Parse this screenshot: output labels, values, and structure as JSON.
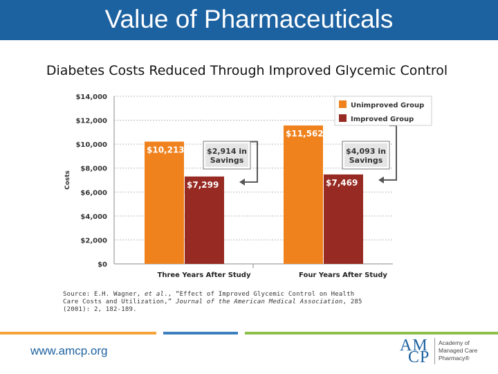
{
  "header": {
    "title": "Value of Pharmaceuticals"
  },
  "colors": {
    "header_bg": "#1d62a0",
    "unimproved": "#f0821e",
    "improved": "#972a22",
    "savings_box": "#e5e5e5",
    "grid": "#bbbbbb",
    "footer_orange": "#f5a23a",
    "footer_blue": "#3d7fbf",
    "footer_green": "#8cc04b"
  },
  "chart_data": {
    "type": "bar",
    "title": "Diabetes Costs Reduced Through Improved Glycemic Control",
    "ylabel": "Costs",
    "xlabel": "",
    "ylim": [
      0,
      14000
    ],
    "yticks": [
      "$0",
      "$2,000",
      "$4,000",
      "$6,000",
      "$8,000",
      "$10,000",
      "$12,000",
      "$14,000"
    ],
    "ytick_values": [
      0,
      2000,
      4000,
      6000,
      8000,
      10000,
      12000,
      14000
    ],
    "categories": [
      "Three Years After Study",
      "Four Years After Study"
    ],
    "series": [
      {
        "name": "Unimproved Group",
        "values": [
          10213,
          11562
        ],
        "labels": [
          "$10,213",
          "$11,562"
        ]
      },
      {
        "name": "Improved Group",
        "values": [
          7299,
          7469
        ],
        "labels": [
          "$7,299",
          "$7,469"
        ]
      }
    ],
    "annotations": [
      {
        "category": "Three Years After Study",
        "line1": "$2,914 in",
        "line2": "Savings"
      },
      {
        "category": "Four Years After Study",
        "line1": "$4,093 in",
        "line2": "Savings"
      }
    ],
    "legend_position": "top-right"
  },
  "source": {
    "prefix": "Source: E.H. Wagner, ",
    "etal": "et al",
    "middle": "., “Effect of Improved Glycemic Control on Health Care Costs and Utilization,” ",
    "journal": "Journal of the American Medical Association",
    "suffix": ", 285 (2001): 2, 182-189."
  },
  "footer": {
    "url": "www.amcp.org",
    "logo_am": "AM",
    "logo_cp": "CP",
    "logo_line1": "Academy of",
    "logo_line2": "Managed Care",
    "logo_line3": "Pharmacy®"
  }
}
